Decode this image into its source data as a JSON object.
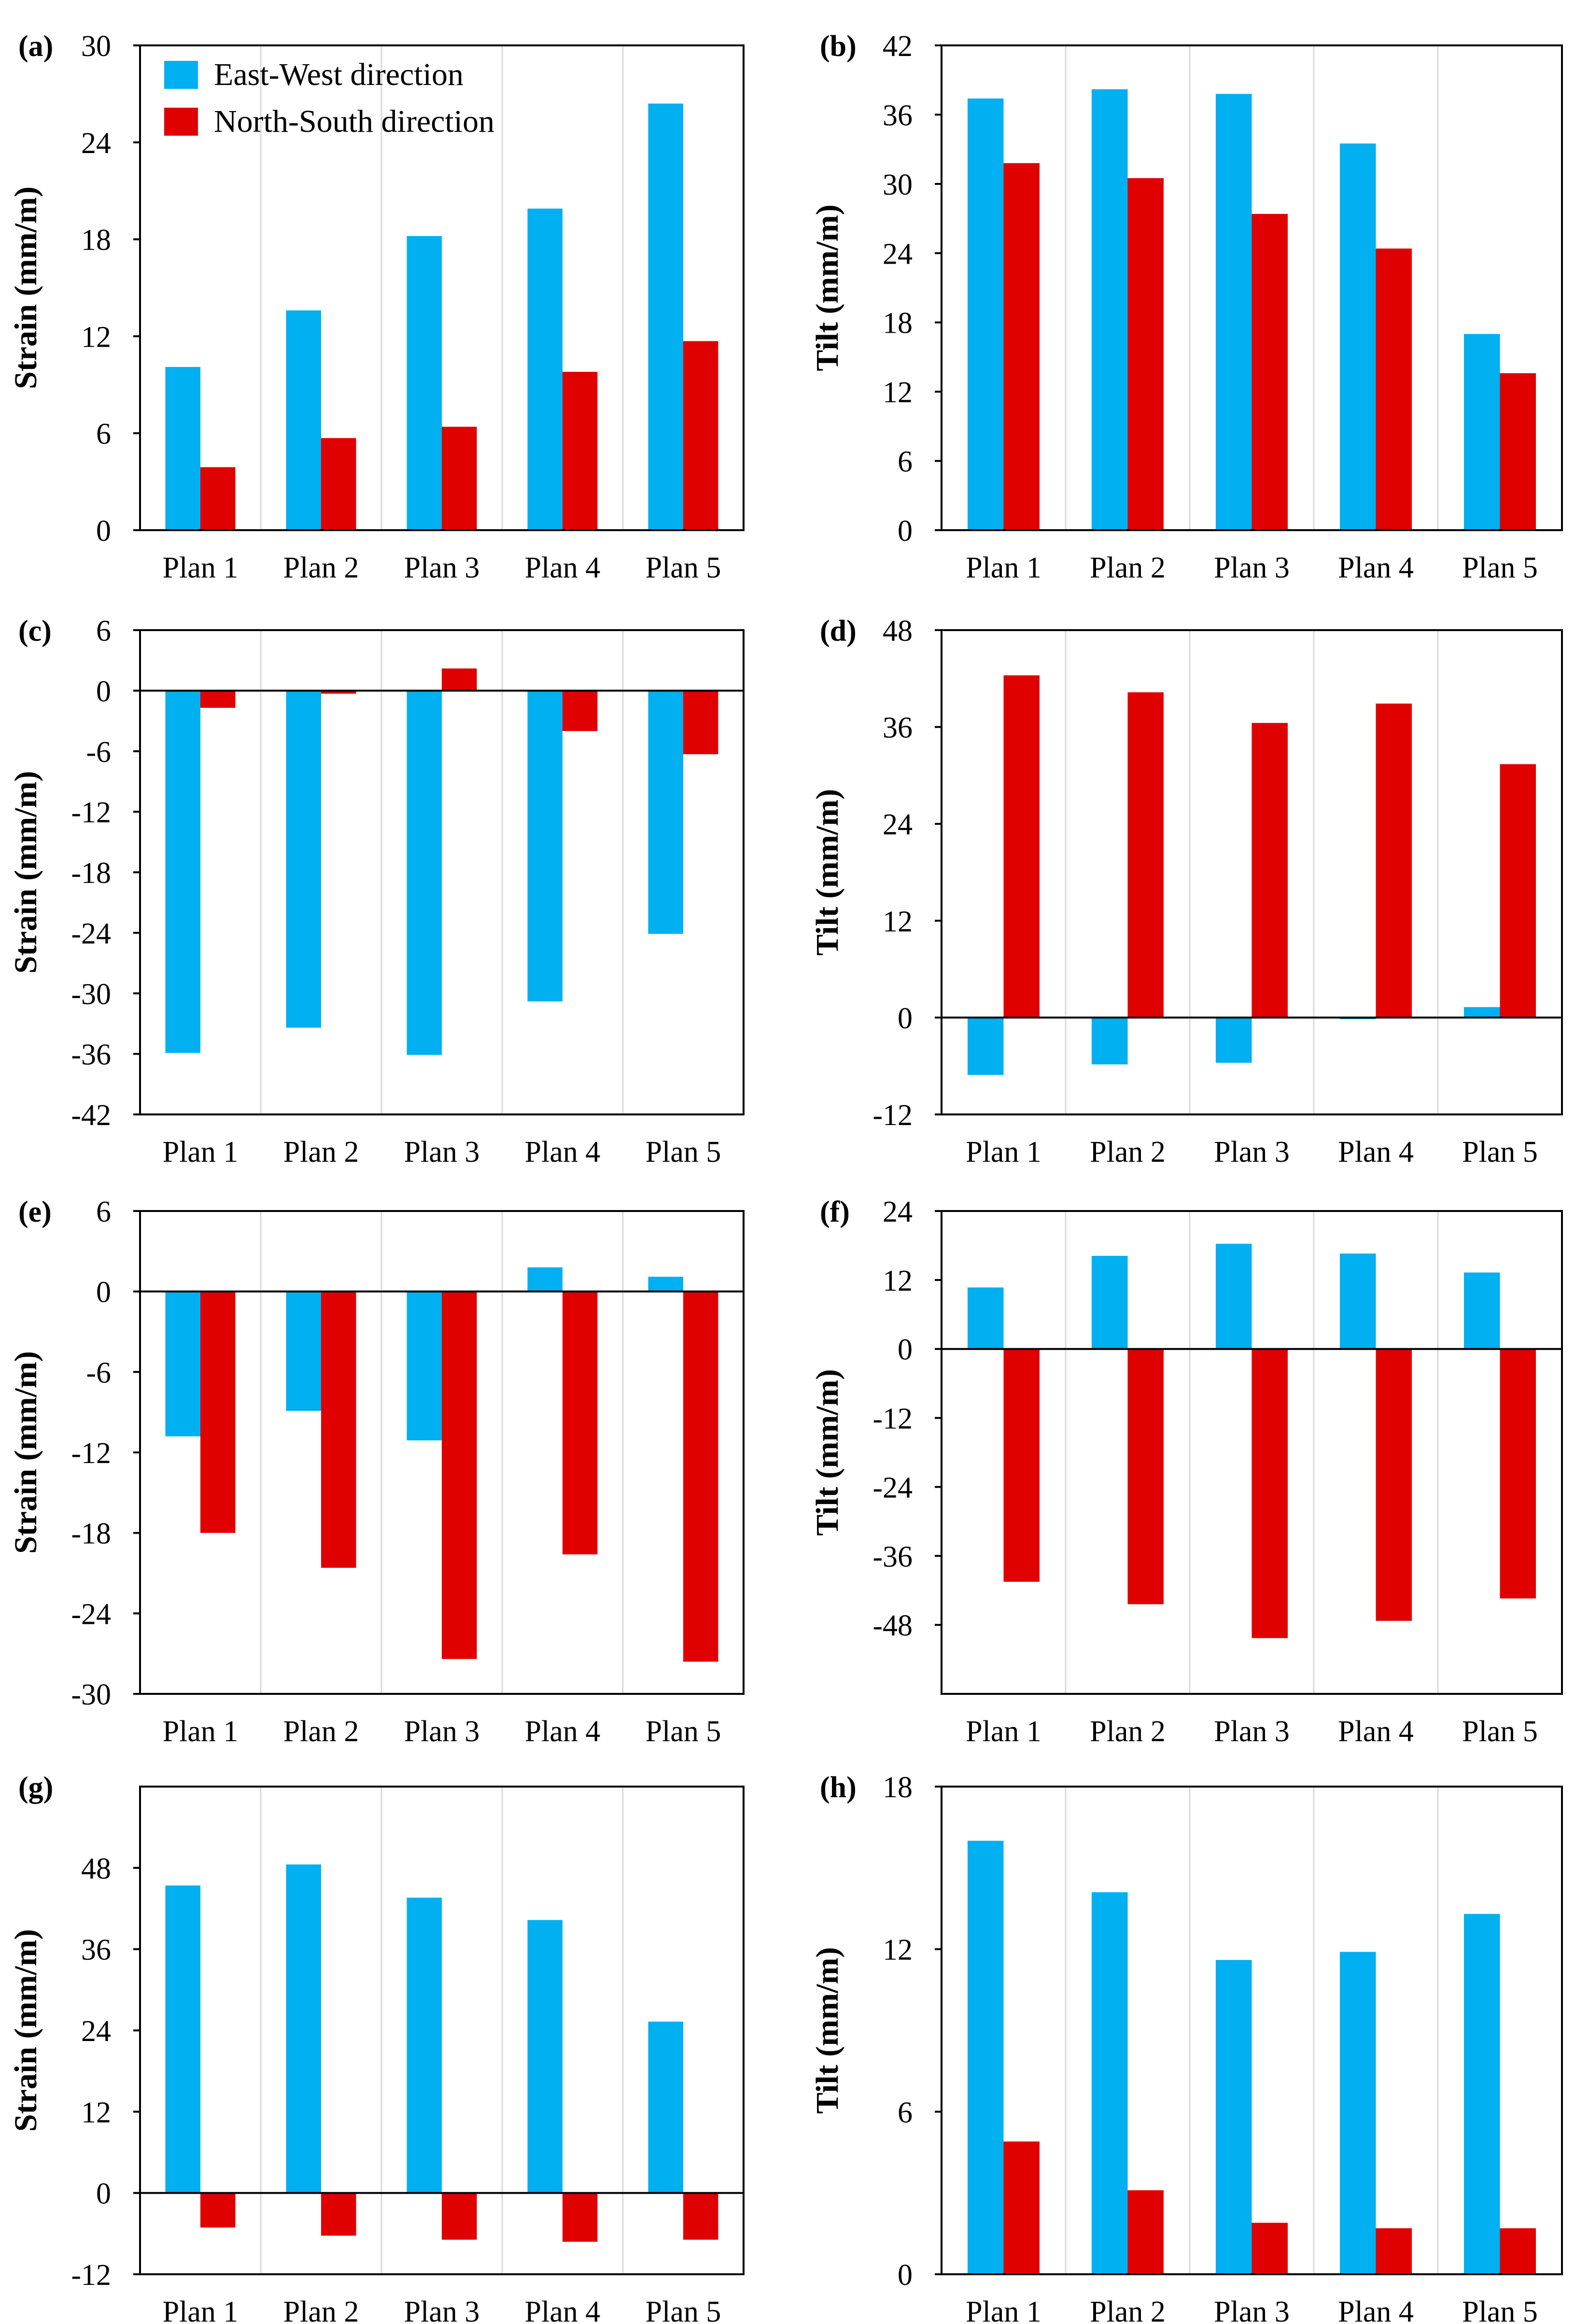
{
  "legend": {
    "series": [
      {
        "name": "East-West direction",
        "color": "#00b0f0"
      },
      {
        "name": "North-South direction",
        "color": "#e00000"
      }
    ]
  },
  "chart_data": [
    {
      "panel": "(a)",
      "type": "bar",
      "categories": [
        "Plan 1",
        "Plan 2",
        "Plan 3",
        "Plan 4",
        "Plan 5"
      ],
      "ylabel": "Strain (mm/m)",
      "ylim": [
        0,
        30
      ],
      "yticks": [
        "0",
        "6",
        "12",
        "18",
        "24",
        "30"
      ],
      "series": [
        {
          "name": "East-West direction",
          "values": [
            10.1,
            13.6,
            18.2,
            19.9,
            26.4
          ]
        },
        {
          "name": "North-South direction",
          "values": [
            3.9,
            5.7,
            6.4,
            9.8,
            11.7
          ]
        }
      ]
    },
    {
      "panel": "(b)",
      "type": "bar",
      "categories": [
        "Plan 1",
        "Plan 2",
        "Plan 3",
        "Plan 4",
        "Plan 5"
      ],
      "ylabel": "Tilt (mm/m)",
      "ylim": [
        0,
        42
      ],
      "yticks": [
        "0",
        "6",
        "12",
        "18",
        "24",
        "30",
        "36",
        "42"
      ],
      "series": [
        {
          "name": "East-West direction",
          "values": [
            37.4,
            38.2,
            37.8,
            33.5,
            17.0
          ]
        },
        {
          "name": "North-South direction",
          "values": [
            31.8,
            30.5,
            27.4,
            24.4,
            13.6
          ]
        }
      ]
    },
    {
      "panel": "(c)",
      "type": "bar",
      "categories": [
        "Plan 1",
        "Plan 2",
        "Plan 3",
        "Plan 4",
        "Plan 5"
      ],
      "ylabel": "Strain (mm/m)",
      "ylim": [
        -42,
        6
      ],
      "yticks": [
        "-42",
        "-36",
        "-30",
        "-24",
        "-18",
        "-12",
        "-6",
        "0",
        "6"
      ],
      "series": [
        {
          "name": "East-West direction",
          "values": [
            -35.9,
            -33.4,
            -36.1,
            -30.8,
            -24.1
          ]
        },
        {
          "name": "North-South direction",
          "values": [
            -1.7,
            -0.3,
            2.2,
            -4.0,
            -6.3
          ]
        }
      ]
    },
    {
      "panel": "(d)",
      "type": "bar",
      "categories": [
        "Plan 1",
        "Plan 2",
        "Plan 3",
        "Plan 4",
        "Plan 5"
      ],
      "ylabel": "Tilt (mm/m)",
      "ylim": [
        -12,
        48
      ],
      "yticks": [
        "-12",
        "0",
        "12",
        "24",
        "36",
        "48"
      ],
      "series": [
        {
          "name": "East-West direction",
          "values": [
            -7.1,
            -5.8,
            -5.6,
            -0.2,
            1.3
          ]
        },
        {
          "name": "North-South direction",
          "values": [
            42.4,
            40.3,
            36.5,
            38.9,
            31.4
          ]
        }
      ]
    },
    {
      "panel": "(e)",
      "type": "bar",
      "categories": [
        "Plan 1",
        "Plan 2",
        "Plan 3",
        "Plan 4",
        "Plan 5"
      ],
      "ylabel": "Strain (mm/m)",
      "ylim": [
        -30,
        6
      ],
      "yticks": [
        "-30",
        "-24",
        "-18",
        "-12",
        "-6",
        "0",
        "6"
      ],
      "series": [
        {
          "name": "East-West direction",
          "values": [
            -10.8,
            -8.9,
            -11.1,
            1.8,
            1.1
          ]
        },
        {
          "name": "North-South direction",
          "values": [
            -18.0,
            -20.6,
            -27.4,
            -19.6,
            -27.6
          ]
        }
      ]
    },
    {
      "panel": "(f)",
      "type": "bar",
      "categories": [
        "Plan 1",
        "Plan 2",
        "Plan 3",
        "Plan 4",
        "Plan 5"
      ],
      "ylabel": "Tilt (mm/m)",
      "ylim": [
        -60,
        24
      ],
      "yticks": [
        "-48",
        "-36",
        "-24",
        "-12",
        "0",
        "12",
        "24"
      ],
      "series": [
        {
          "name": "East-West direction",
          "values": [
            10.7,
            16.2,
            18.3,
            16.6,
            13.3
          ]
        },
        {
          "name": "North-South direction",
          "values": [
            -40.5,
            -44.4,
            -50.3,
            -47.3,
            -43.4
          ]
        }
      ]
    },
    {
      "panel": "(g)",
      "type": "bar",
      "categories": [
        "Plan 1",
        "Plan 2",
        "Plan 3",
        "Plan 4",
        "Plan 5"
      ],
      "ylabel": "Strain (mm/m)",
      "ylim": [
        -12,
        60
      ],
      "yticks": [
        "-12",
        "0",
        "12",
        "24",
        "36",
        "48"
      ],
      "series": [
        {
          "name": "East-West direction",
          "values": [
            45.4,
            48.5,
            43.6,
            40.3,
            25.3
          ]
        },
        {
          "name": "North-South direction",
          "values": [
            -5.1,
            -6.3,
            -6.9,
            -7.2,
            -6.9
          ]
        }
      ]
    },
    {
      "panel": "(h)",
      "type": "bar",
      "categories": [
        "Plan 1",
        "Plan 2",
        "Plan 3",
        "Plan 4",
        "Plan 5"
      ],
      "ylabel": "Tilt (mm/m)",
      "ylim": [
        0,
        18
      ],
      "yticks": [
        "0",
        "6",
        "12",
        "18"
      ],
      "series": [
        {
          "name": "East-West direction",
          "values": [
            16.0,
            14.1,
            11.6,
            11.9,
            13.3
          ]
        },
        {
          "name": "North-South direction",
          "values": [
            4.9,
            3.1,
            1.9,
            1.7,
            1.7
          ]
        }
      ]
    }
  ]
}
